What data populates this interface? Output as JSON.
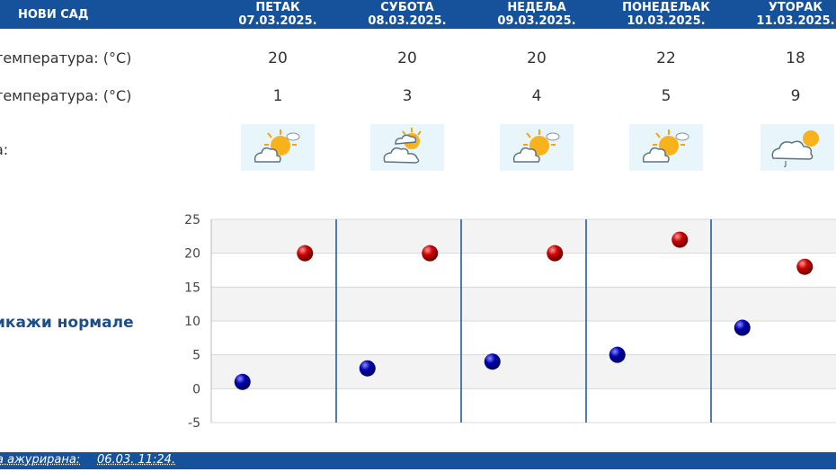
{
  "header": {
    "city": "НОВИ САД",
    "days": [
      {
        "name": "ПЕТАК",
        "date": "07.03.2025."
      },
      {
        "name": "СУБОТА",
        "date": "08.03.2025."
      },
      {
        "name": "НЕДЕЉА",
        "date": "09.03.2025."
      },
      {
        "name": "ПОНЕДЕЉАК",
        "date": "10.03.2025."
      },
      {
        "name": "УТОРАК",
        "date": "11.03.2025."
      }
    ]
  },
  "rows": {
    "max_label": "температура: (°C)",
    "min_label": "температура: (°C)",
    "icon_label": "а:",
    "max": [
      "20",
      "20",
      "20",
      "22",
      "18"
    ],
    "min": [
      "1",
      "3",
      "4",
      "5",
      "9"
    ]
  },
  "icons": [
    "partly-cloudy-icon",
    "mostly-cloudy-icon",
    "partly-cloudy-icon",
    "partly-cloudy-icon",
    "cloudy-rain-icon"
  ],
  "normals_label": "икажи нормале",
  "footer": {
    "label": "а ажурирана:",
    "value": "06.03. 11:24."
  },
  "colors": {
    "header": "#15529b",
    "max_marker": "#cc0000",
    "min_marker": "#0000b0",
    "divider": "#15529b"
  },
  "chart_data": {
    "type": "scatter",
    "categories": [
      "07.03.2025.",
      "08.03.2025.",
      "09.03.2025.",
      "10.03.2025.",
      "11.03.2025."
    ],
    "series": [
      {
        "values": [
          20,
          20,
          20,
          22,
          18
        ]
      },
      {
        "values": [
          1,
          3,
          4,
          5,
          9
        ]
      }
    ],
    "ylim": [
      -5,
      25
    ],
    "yticks": [
      "25",
      "20",
      "15",
      "10",
      "5",
      "0",
      "-5"
    ],
    "grid": true
  }
}
